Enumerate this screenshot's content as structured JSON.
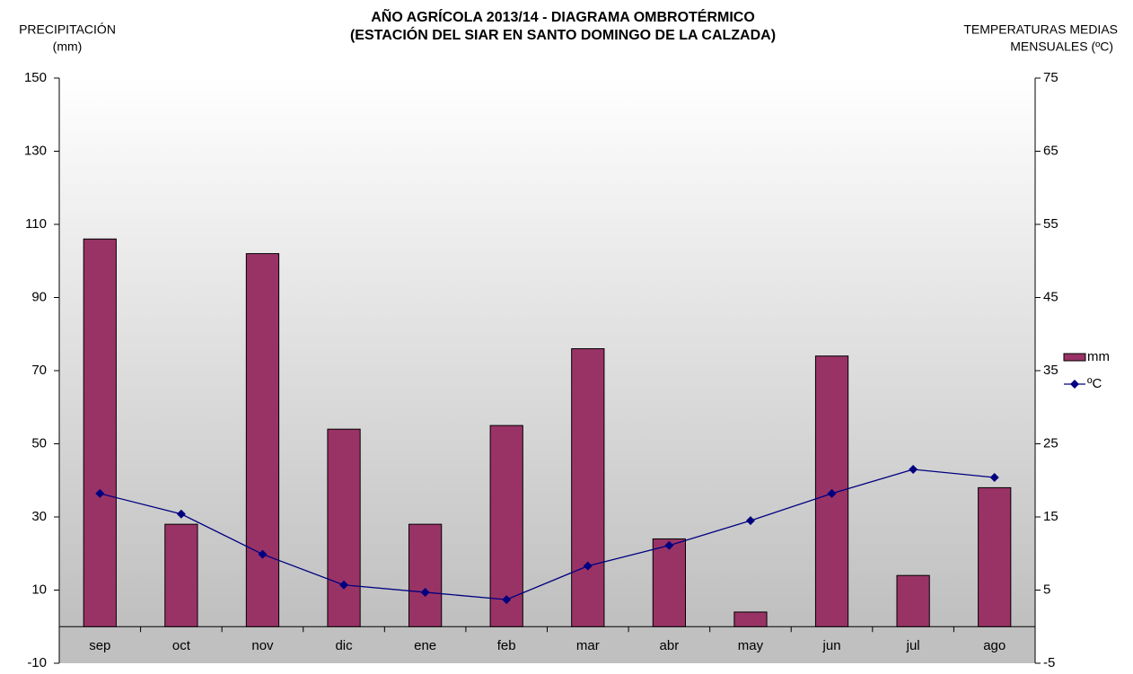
{
  "chart_data": {
    "type": "bar_line",
    "title": [
      "AÑO AGRÍCOLA 2013/14 - DIAGRAMA OMBROTÉRMICO",
      "(ESTACIÓN DEL SIAR EN  SANTO DOMINGO DE LA CALZADA)"
    ],
    "y_label": [
      "PRECIPITACIÓN",
      "(mm)"
    ],
    "y2_label": [
      "TEMPERATURAS  MEDIAS",
      "MENSUALES  (ºC)"
    ],
    "categories": [
      "sep",
      "oct",
      "nov",
      "dic",
      "ene",
      "feb",
      "mar",
      "abr",
      "may",
      "jun",
      "jul",
      "ago"
    ],
    "series": [
      {
        "name": "mm",
        "type": "bar",
        "color": "#993366",
        "values": [
          106,
          28,
          102,
          54,
          28,
          55,
          76,
          24,
          4,
          74,
          14,
          38
        ]
      },
      {
        "name": "ºC",
        "type": "line",
        "axis": "y2",
        "color": "#000080",
        "values": [
          18.2,
          15.4,
          9.9,
          5.7,
          4.7,
          3.7,
          8.3,
          11.1,
          14.5,
          18.2,
          21.5,
          20.4
        ]
      }
    ],
    "ylim": [
      -10,
      150
    ],
    "yticks": [
      -10,
      10,
      30,
      50,
      70,
      90,
      110,
      130,
      150
    ],
    "y2lim": [
      -5,
      75
    ],
    "y2ticks": [
      -5,
      5,
      15,
      25,
      35,
      45,
      55,
      65,
      75
    ],
    "legend": "right"
  }
}
